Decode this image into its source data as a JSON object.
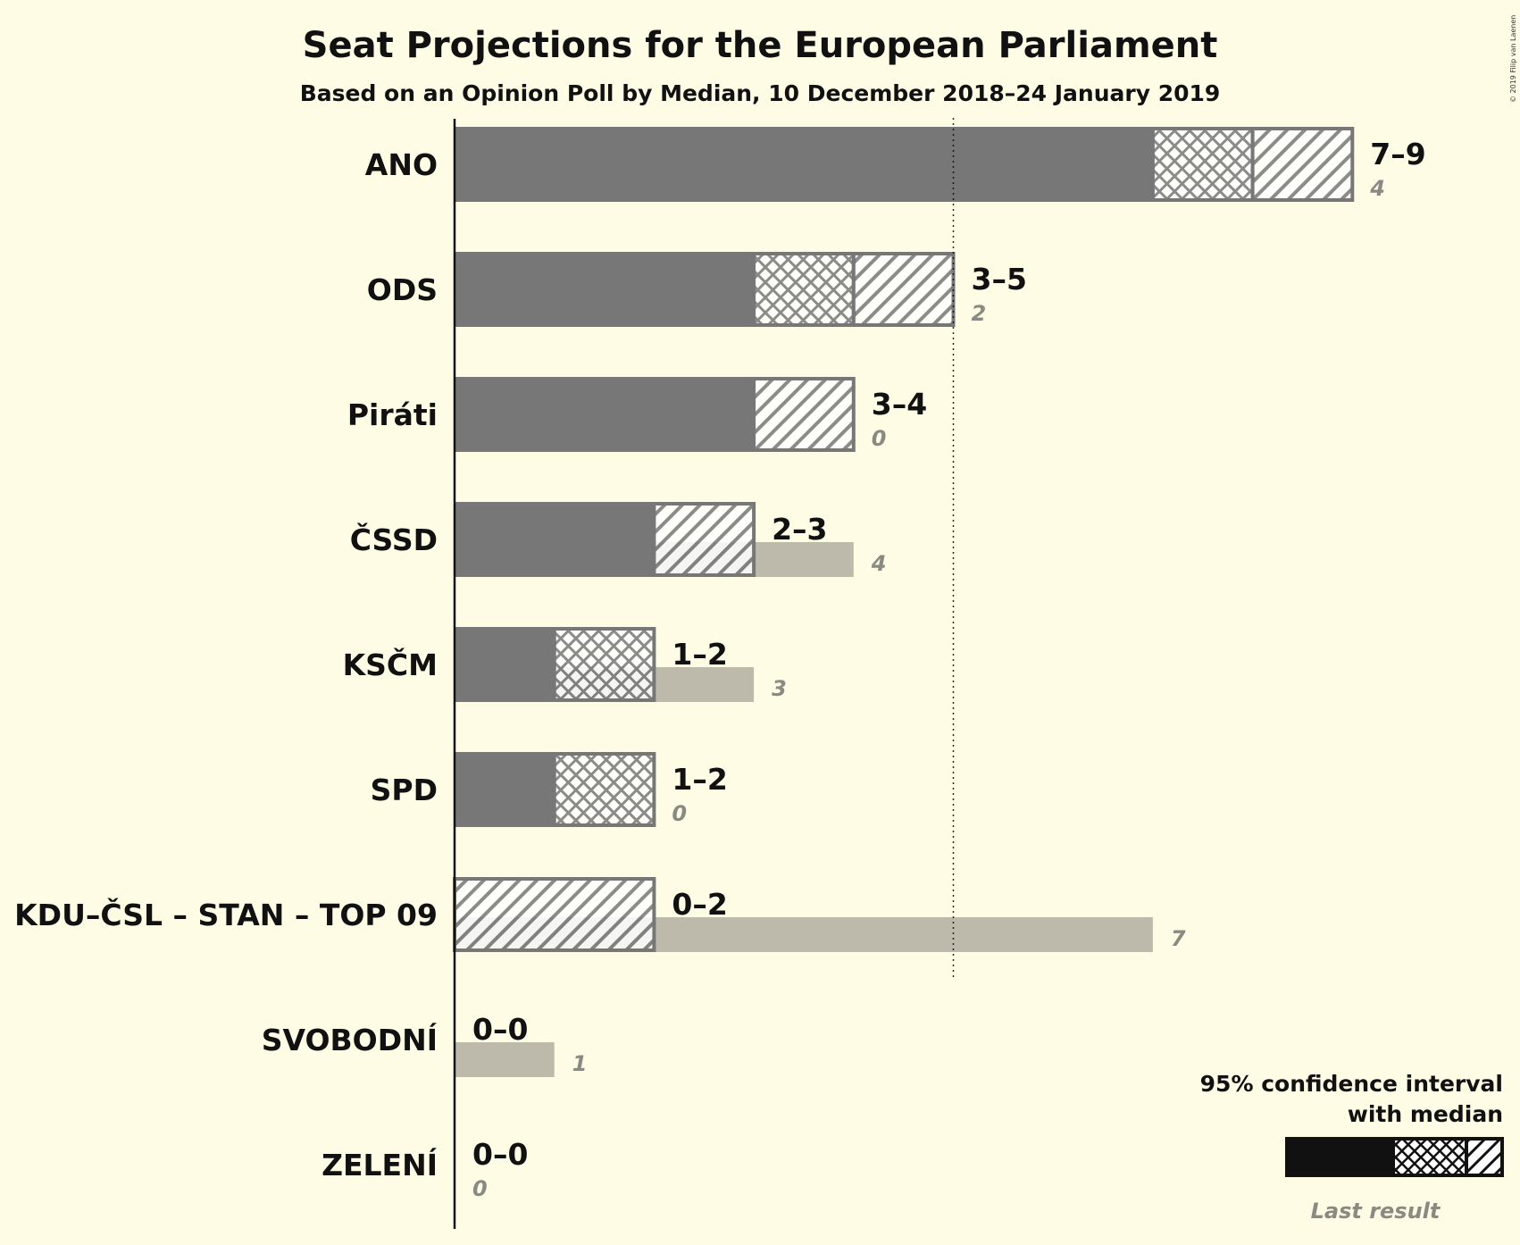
{
  "title": "Seat Projections for the European Parliament",
  "subtitle": "Based on an Opinion Poll by Median, 10 December 2018–24 January 2019",
  "copyright": "© 2019 Filip van Laenen",
  "chart_data": {
    "type": "bar",
    "orientation": "horizontal",
    "majority_line": 5,
    "parties": [
      {
        "name": "ANO",
        "low": 7,
        "median": 8,
        "high": 9,
        "range_label": "7–9",
        "last": 4
      },
      {
        "name": "ODS",
        "low": 3,
        "median": 4,
        "high": 5,
        "range_label": "3–5",
        "last": 2
      },
      {
        "name": "Piráti",
        "low": 3,
        "median": 3,
        "high": 4,
        "range_label": "3–4",
        "last": 0
      },
      {
        "name": "ČSSD",
        "low": 2,
        "median": 2,
        "high": 3,
        "range_label": "2–3",
        "last": 4
      },
      {
        "name": "KSČM",
        "low": 1,
        "median": 2,
        "high": 2,
        "range_label": "1–2",
        "last": 3
      },
      {
        "name": "SPD",
        "low": 1,
        "median": 2,
        "high": 2,
        "range_label": "1–2",
        "last": 0
      },
      {
        "name": "KDU–ČSL – STAN – TOP 09",
        "low": 0,
        "median": 0,
        "high": 2,
        "range_label": "0–2",
        "last": 7
      },
      {
        "name": "SVOBODNÍ",
        "low": 0,
        "median": 0,
        "high": 0,
        "range_label": "0–0",
        "last": 1
      },
      {
        "name": "ZELENÍ",
        "low": 0,
        "median": 0,
        "high": 0,
        "range_label": "0–0",
        "last": 0
      }
    ]
  },
  "legend": {
    "line1": "95% confidence interval",
    "line2": "with median",
    "last_result": "Last result"
  },
  "colors": {
    "background": "#FFFCE6",
    "bar": "#777777",
    "last_result": "#BDBAAC",
    "last_label": "#8a8a82",
    "legend_bar": "#111111"
  }
}
